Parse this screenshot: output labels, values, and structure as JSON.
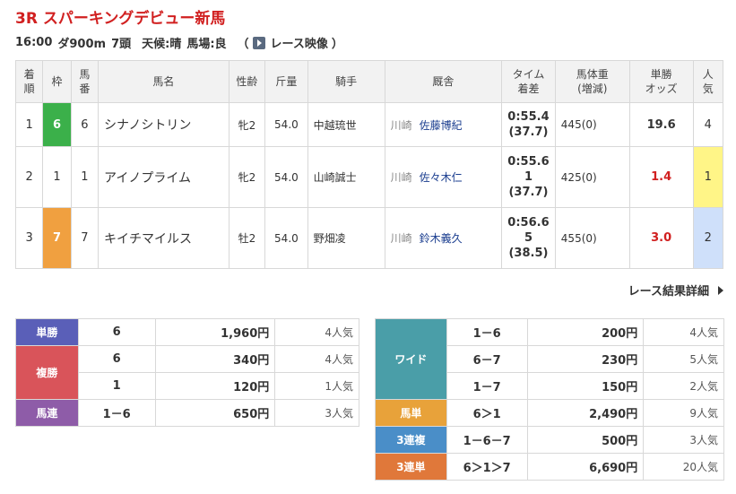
{
  "race": {
    "title": "3R スパーキングデビュー新馬",
    "time": "16:00",
    "course": "ダ900m",
    "runners": "7頭",
    "weather": "天候:晴",
    "track": "馬場:良",
    "video_label": "レース映像",
    "paren_open": "（",
    "paren_close": "）"
  },
  "colors": {
    "title": "#d12020",
    "frame6": "#3bb04a",
    "frame1": "#ffffff",
    "frame7": "#f0a040",
    "win": "#5a5fb8",
    "place": "#d9545a",
    "quinella": "#8e5ca8",
    "wide": "#4a9ea8",
    "exacta": "#e8a23a",
    "trio": "#4a8ec8",
    "trifecta": "#e0783a"
  },
  "result": {
    "headers": {
      "rank": [
        "着",
        "順"
      ],
      "frame": "枠",
      "num": [
        "馬",
        "番"
      ],
      "horse": "馬名",
      "sexage": "性齢",
      "weight": "斤量",
      "jockey": "騎手",
      "trainer": "厩舎",
      "time": [
        "タイム",
        "着差"
      ],
      "body": [
        "馬体重",
        "(増減)"
      ],
      "odds": [
        "単勝",
        "オッズ"
      ],
      "pop": [
        "人",
        "気"
      ]
    },
    "rows": [
      {
        "rank": "1",
        "frame": "6",
        "num": "6",
        "horse": "シナノシトリン",
        "sexage": "牝2",
        "weight": "54.0",
        "jockey": "中越琉世",
        "area": "川崎",
        "trainer": "佐藤博紀",
        "time": "0:55.4",
        "margin": "(37.7)",
        "body": "445(0)",
        "odds": "19.6",
        "pop": "4"
      },
      {
        "rank": "2",
        "frame": "1",
        "num": "1",
        "horse": "アイノプライム",
        "sexage": "牝2",
        "weight": "54.0",
        "jockey": "山崎誠士",
        "area": "川崎",
        "trainer": "佐々木仁",
        "time": "0:55.6",
        "margin1": "1",
        "margin": "(37.7)",
        "body": "425(0)",
        "odds": "1.4",
        "pop": "1"
      },
      {
        "rank": "3",
        "frame": "7",
        "num": "7",
        "horse": "キイチマイルス",
        "sexage": "牡2",
        "weight": "54.0",
        "jockey": "野畑凌",
        "area": "川崎",
        "trainer": "鈴木義久",
        "time": "0:56.6",
        "margin1": "5",
        "margin": "(38.5)",
        "body": "455(0)",
        "odds": "3.0",
        "pop": "2"
      }
    ]
  },
  "detail_link": "レース結果詳細",
  "payouts_left": {
    "win": {
      "label": "単勝",
      "combo": "6",
      "yen": "1,960円",
      "pop": "4人気"
    },
    "place": {
      "label": "複勝",
      "rows": [
        {
          "combo": "6",
          "yen": "340円",
          "pop": "4人気"
        },
        {
          "combo": "1",
          "yen": "120円",
          "pop": "1人気"
        }
      ]
    },
    "quinella": {
      "label": "馬連",
      "combo": "1－6",
      "yen": "650円",
      "pop": "3人気"
    }
  },
  "payouts_right": {
    "wide": {
      "label": "ワイド",
      "rows": [
        {
          "combo": "1－6",
          "yen": "200円",
          "pop": "4人気"
        },
        {
          "combo": "6－7",
          "yen": "230円",
          "pop": "5人気"
        },
        {
          "combo": "1－7",
          "yen": "150円",
          "pop": "2人気"
        }
      ]
    },
    "exacta": {
      "label": "馬単",
      "combo": "6＞1",
      "yen": "2,490円",
      "pop": "9人気"
    },
    "trio": {
      "label": "3連複",
      "combo": "1－6－7",
      "yen": "500円",
      "pop": "3人気"
    },
    "trifecta": {
      "label": "3連単",
      "combo": "6＞1＞7",
      "yen": "6,690円",
      "pop": "20人気"
    }
  }
}
